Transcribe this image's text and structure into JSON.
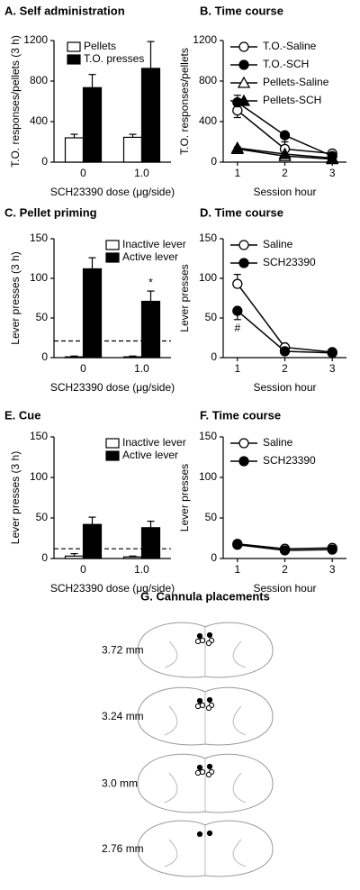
{
  "chart_data": [
    {
      "type": "bar",
      "title": "A. Self administration",
      "y_label": "T.O. responses/pellets (3 h)",
      "x_label": "SCH23390 dose (μg/side)",
      "categories": [
        "0",
        "1.0"
      ],
      "ylim": [
        0,
        1200
      ],
      "yticks": [
        0,
        400,
        800,
        1200
      ],
      "legend": "upper left",
      "series": [
        {
          "name": "Pellets",
          "color": "#ffffff",
          "values": [
            240,
            245
          ],
          "errors": [
            35,
            30
          ]
        },
        {
          "name": "T.O. presses",
          "color": "#000000",
          "values": [
            735,
            925
          ],
          "errors": [
            130,
            265
          ]
        }
      ]
    },
    {
      "type": "line",
      "title": "B. Time course",
      "y_label": "T.O. responses/pellets",
      "x_label": "Session hour",
      "x": [
        1,
        2,
        3
      ],
      "xlim": [
        0.7,
        3.3
      ],
      "xticks": [
        1,
        2,
        3
      ],
      "ylim": [
        0,
        1200
      ],
      "yticks": [
        0,
        400,
        800,
        1200
      ],
      "legend": "upper right",
      "series": [
        {
          "name": "T.O.-Saline",
          "marker": "circle",
          "color": "#ffffff",
          "values": [
            510,
            130,
            85
          ],
          "errors": [
            150,
            70,
            25
          ]
        },
        {
          "name": "T.O.-SCH",
          "marker": "circle",
          "color": "#000000",
          "values": [
            590,
            265,
            60
          ],
          "errors": [
            150,
            150,
            20
          ]
        },
        {
          "name": "Pellets-Saline",
          "marker": "triangle",
          "color": "#ffffff",
          "values": [
            130,
            60,
            30
          ],
          "errors": [
            20,
            15,
            10
          ]
        },
        {
          "name": "Pellets-SCH",
          "marker": "triangle",
          "color": "#000000",
          "values": [
            140,
            80,
            40
          ],
          "errors": [
            25,
            20,
            10
          ]
        }
      ]
    },
    {
      "type": "bar",
      "title": "C. Pellet priming",
      "y_label": "Lever presses (3 h)",
      "x_label": "SCH23390 dose (μg/side)",
      "categories": [
        "0",
        "1.0"
      ],
      "ylim": [
        0,
        150
      ],
      "yticks": [
        0,
        50,
        100,
        150
      ],
      "legend": "upper right",
      "reference_line": 21,
      "annotation": "*",
      "series": [
        {
          "name": "Inactive lever",
          "color": "#ffffff",
          "values": [
            1,
            1
          ],
          "errors": [
            1,
            1
          ]
        },
        {
          "name": "Active lever",
          "color": "#000000",
          "values": [
            112,
            71
          ],
          "errors": [
            14,
            13
          ]
        }
      ]
    },
    {
      "type": "line",
      "title": "D. Time course",
      "y_label": "Lever presses",
      "x_label": "Session hour",
      "x": [
        1,
        2,
        3
      ],
      "xlim": [
        0.7,
        3.3
      ],
      "xticks": [
        1,
        2,
        3
      ],
      "ylim": [
        0,
        150
      ],
      "yticks": [
        0,
        50,
        100,
        150
      ],
      "legend": "upper right",
      "annotation": "#",
      "series": [
        {
          "name": "Saline",
          "marker": "circle",
          "color": "#ffffff",
          "values": [
            93,
            13,
            7
          ],
          "errors": [
            12,
            2,
            1
          ]
        },
        {
          "name": "SCH23390",
          "marker": "circle",
          "color": "#000000",
          "values": [
            59,
            8,
            6
          ],
          "errors": [
            11,
            2,
            1
          ]
        }
      ]
    },
    {
      "type": "bar",
      "title": "E. Cue",
      "y_label": "Lever presses (3 h)",
      "x_label": "SCH23390 dose (μg/side)",
      "categories": [
        "0",
        "1.0"
      ],
      "ylim": [
        0,
        150
      ],
      "yticks": [
        0,
        50,
        100,
        150
      ],
      "legend": "upper right",
      "reference_line": 12,
      "series": [
        {
          "name": "Inactive lever",
          "color": "#ffffff",
          "values": [
            3,
            2
          ],
          "errors": [
            3,
            1
          ]
        },
        {
          "name": "Active lever",
          "color": "#000000",
          "values": [
            42,
            38
          ],
          "errors": [
            9,
            8
          ]
        }
      ]
    },
    {
      "type": "line",
      "title": "F. Time course",
      "y_label": "Lever presses",
      "x_label": "Session hour",
      "x": [
        1,
        2,
        3
      ],
      "xlim": [
        0.7,
        3.3
      ],
      "xticks": [
        1,
        2,
        3
      ],
      "ylim": [
        0,
        150
      ],
      "yticks": [
        0,
        50,
        100,
        150
      ],
      "legend": "upper right",
      "series": [
        {
          "name": "Saline",
          "marker": "circle",
          "color": "#ffffff",
          "values": [
            18,
            12,
            13
          ],
          "errors": [
            2,
            2,
            2
          ]
        },
        {
          "name": "SCH23390",
          "marker": "circle",
          "color": "#000000",
          "values": [
            17,
            10,
            11
          ],
          "errors": [
            2,
            2,
            2
          ]
        }
      ]
    }
  ],
  "figure_g": {
    "title": "G. Cannula placements",
    "levels": [
      "3.72 mm",
      "3.24 mm",
      "3.0 mm",
      "2.76 mm"
    ]
  }
}
